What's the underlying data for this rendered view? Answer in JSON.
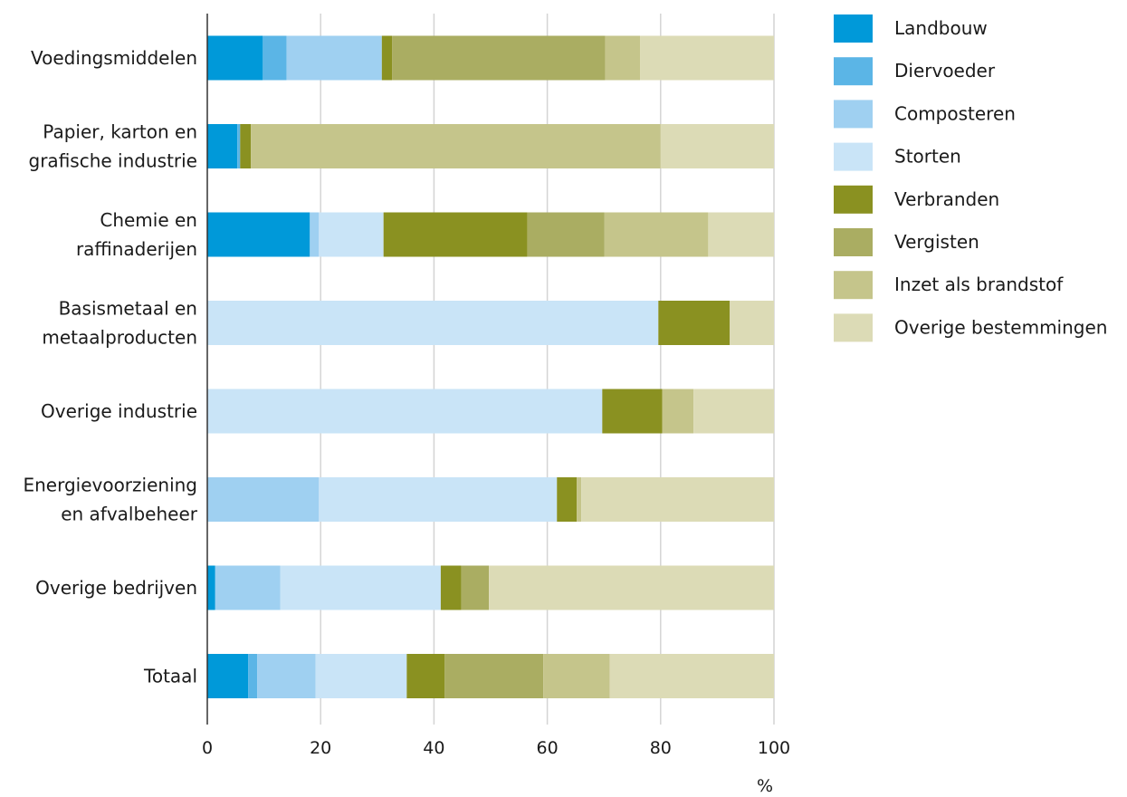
{
  "chart_data": {
    "type": "bar",
    "orientation": "horizontal",
    "stacked": true,
    "categories": [
      "Voedingsmiddelen",
      "Papier, karton en grafische industrie",
      "Chemie en raffinaderijen",
      "Basismetaal en metaalproducten",
      "Overige industrie",
      "Energievoorziening en afvalbeheer",
      "Overige bedrijven",
      "Totaal"
    ],
    "category_lines": [
      [
        "Voedingsmiddelen"
      ],
      [
        "Papier, karton en",
        "grafische industrie"
      ],
      [
        "Chemie en",
        "raffinaderijen"
      ],
      [
        "Basismetaal en",
        "metaalproducten"
      ],
      [
        "Overige industrie"
      ],
      [
        "Energievoorziening",
        "en afvalbeheer"
      ],
      [
        "Overige bedrijven"
      ],
      [
        "Totaal"
      ]
    ],
    "series": [
      {
        "name": "Landbouw",
        "color": "#0099d9",
        "values": [
          9.8,
          5.3,
          18.1,
          0,
          0,
          0,
          1.4,
          7.2
        ]
      },
      {
        "name": "Diervoeder",
        "color": "#5bb5e6",
        "values": [
          4.2,
          0.5,
          0,
          0,
          0,
          0,
          0,
          1.6
        ]
      },
      {
        "name": "Composteren",
        "color": "#9fd0f1",
        "values": [
          16.8,
          0,
          1.6,
          0,
          0,
          19.7,
          11.5,
          10.3
        ]
      },
      {
        "name": "Storten",
        "color": "#c9e4f7",
        "values": [
          0,
          0,
          11.4,
          79.6,
          69.7,
          42.0,
          28.3,
          16.1
        ]
      },
      {
        "name": "Verbranden",
        "color": "#8a9121",
        "values": [
          1.8,
          1.9,
          25.4,
          12.6,
          10.6,
          3.5,
          3.6,
          6.7
        ]
      },
      {
        "name": "Vergisten",
        "color": "#aaad62",
        "values": [
          37.6,
          0,
          13.6,
          0,
          0,
          0,
          4.9,
          17.4
        ]
      },
      {
        "name": "Inzet als brandstof",
        "color": "#c5c58b",
        "values": [
          6.2,
          72.3,
          18.3,
          0,
          5.5,
          0.8,
          0,
          11.7
        ]
      },
      {
        "name": "Overige bestemmingen",
        "color": "#dcdbb6",
        "values": [
          23.6,
          20.0,
          11.6,
          7.8,
          14.2,
          34.0,
          50.3,
          29.0
        ]
      }
    ],
    "x_ticks": [
      "0",
      "20",
      "40",
      "60",
      "80",
      "100"
    ],
    "xlim": [
      0,
      100
    ],
    "xlabel": "%",
    "grid": "vertical",
    "legend_position": "right"
  }
}
